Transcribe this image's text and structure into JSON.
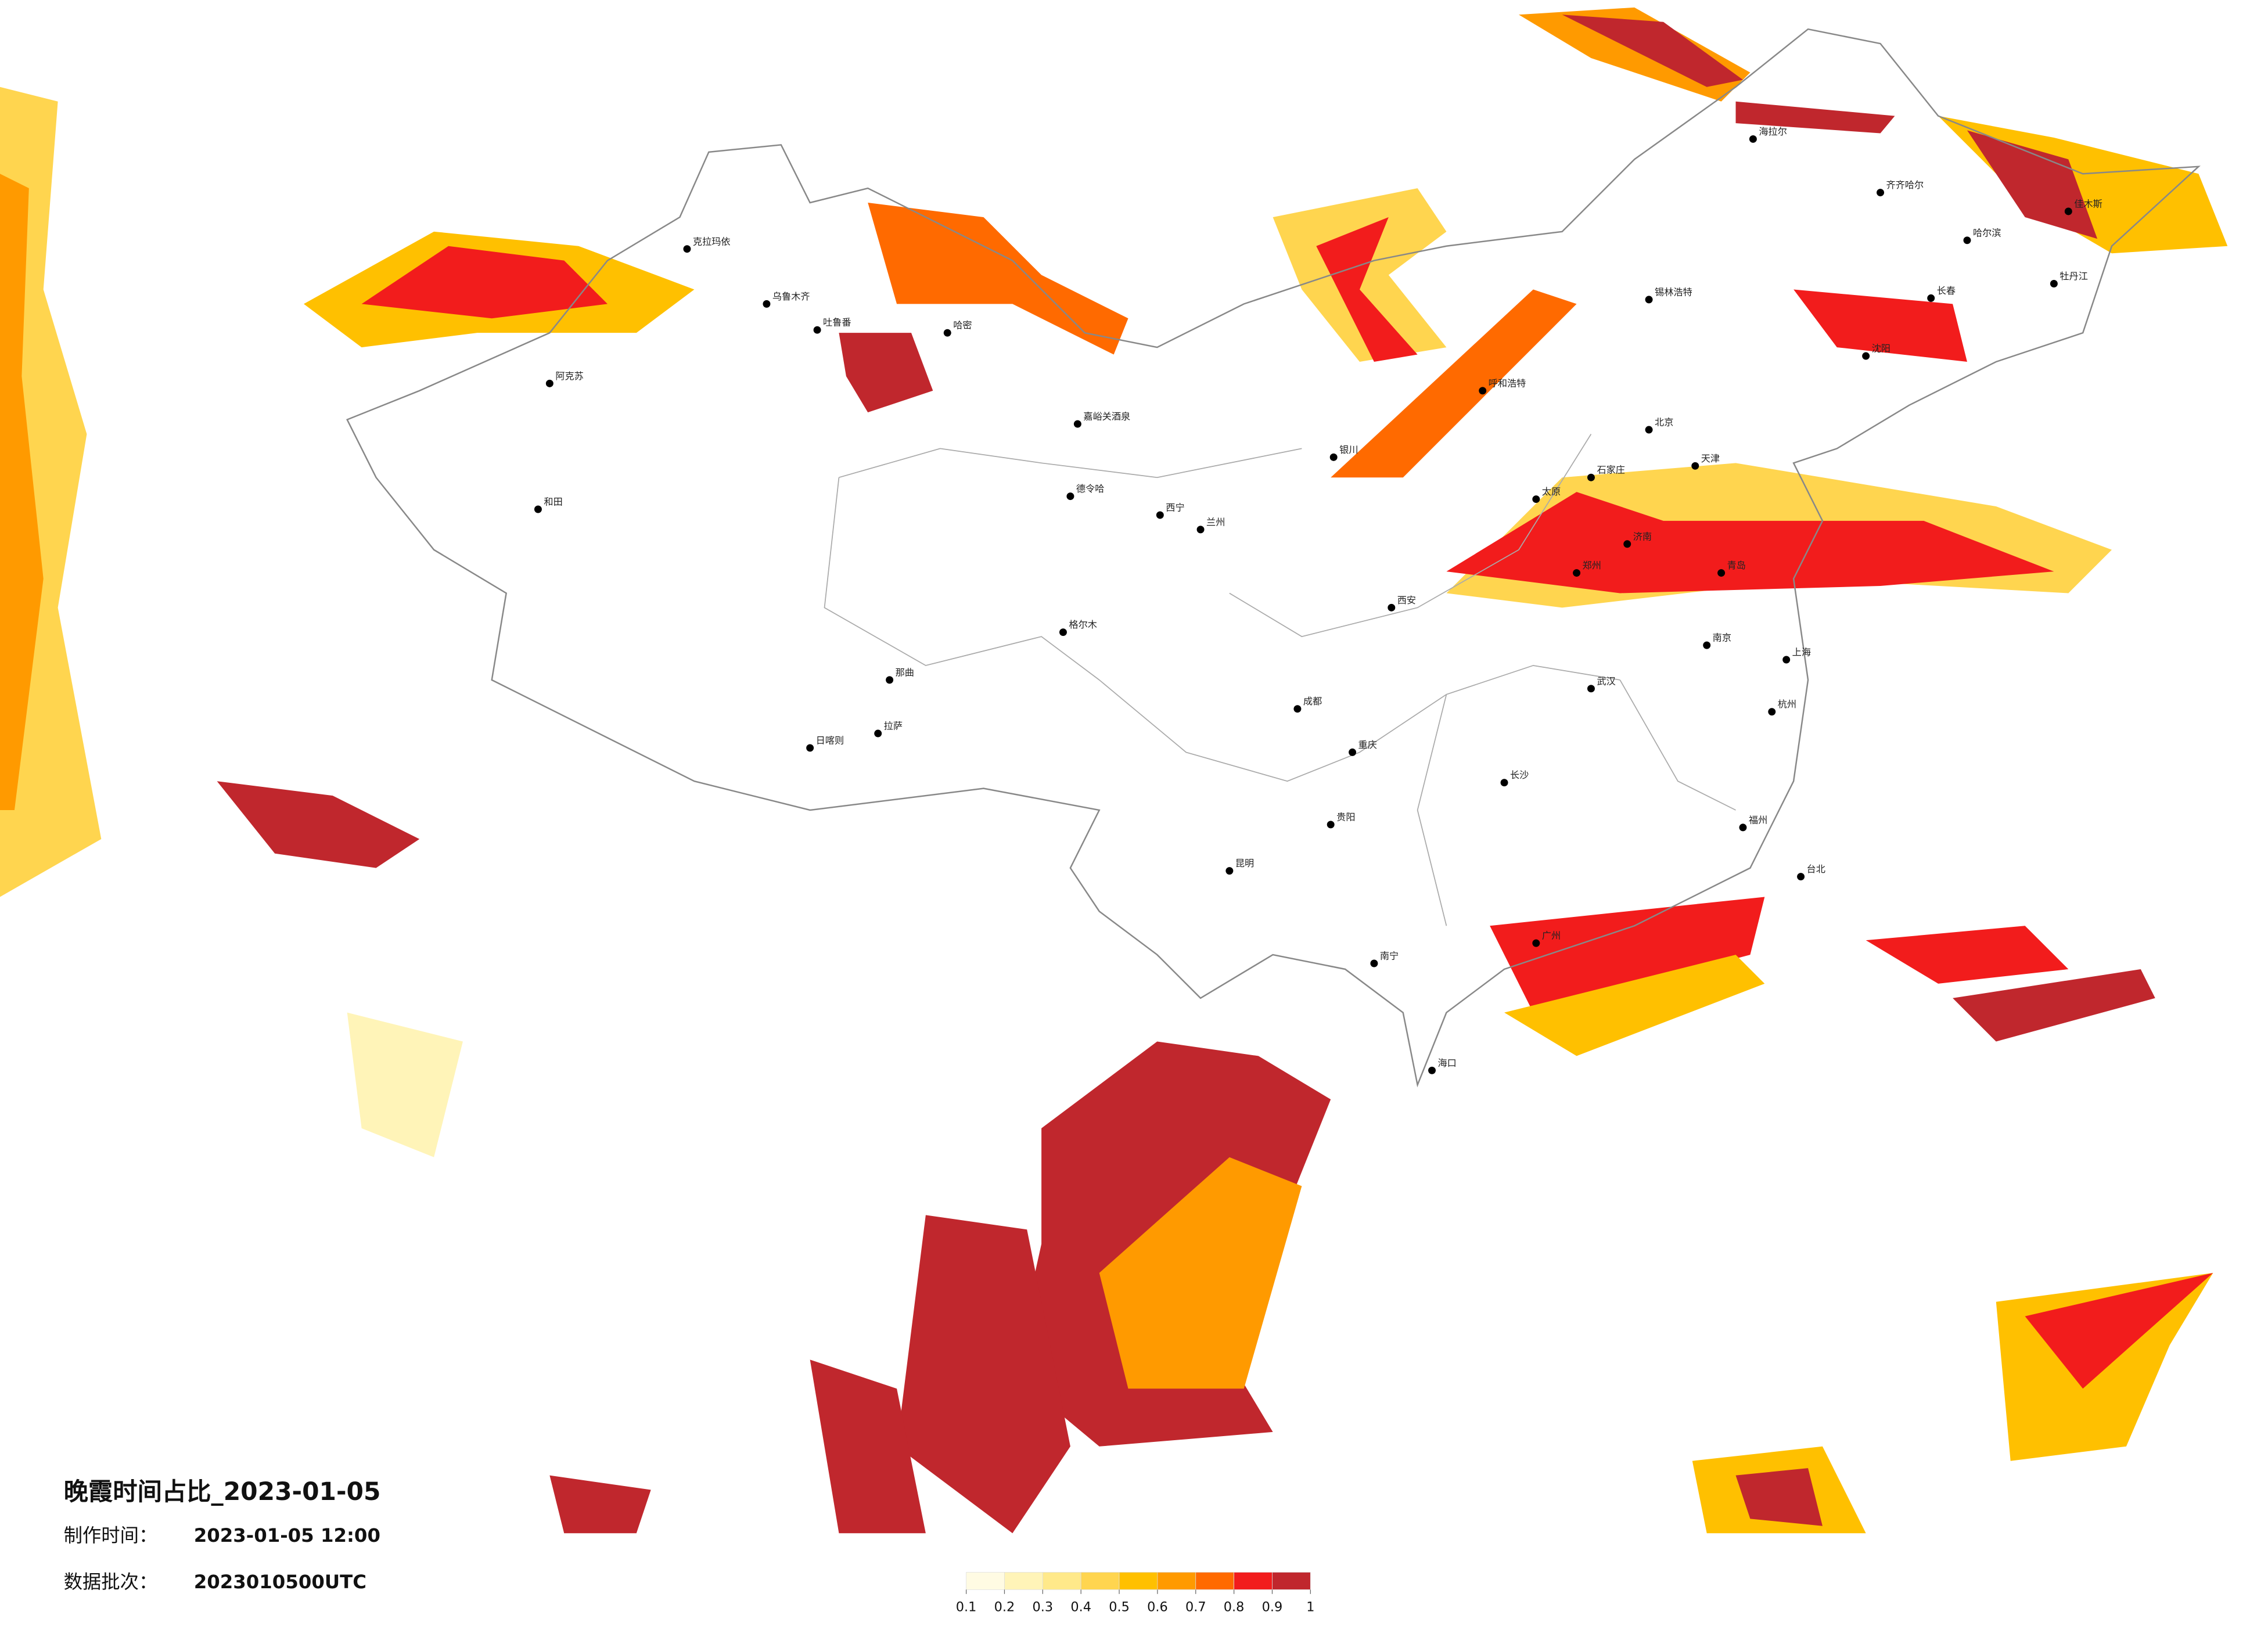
{
  "title": "晚霞时间占比_2023-01-05",
  "made_time": {
    "label": "制作时间：",
    "value": "2023-01-05 12:00"
  },
  "batch": {
    "label": "数据批次：",
    "value": "2023010500UTC"
  },
  "legend": {
    "colors": [
      "#fffbe3",
      "#fff4b8",
      "#ffe98a",
      "#ffd54f",
      "#ffc000",
      "#ff9a00",
      "#ff6a00",
      "#f21c1c",
      "#c0272d"
    ],
    "ticks": [
      0.1,
      0.2,
      0.3,
      0.4,
      0.5,
      0.6,
      0.7,
      0.8,
      0.9,
      1
    ]
  },
  "cities": [
    "克拉玛依",
    "乌鲁木齐",
    "吐鲁番",
    "阿克苏",
    "和田",
    "哈密",
    "嘉峪关酒泉",
    "德令哈",
    "格尔木",
    "日喀则",
    "拉萨",
    "那曲",
    "呼和浩特",
    "北京",
    "天津",
    "石家庄",
    "太原",
    "郑州",
    "西安",
    "兰州",
    "西宁",
    "银川",
    "成都",
    "重庆",
    "贵阳",
    "昆明",
    "南宁",
    "广州",
    "长沙",
    "武汉",
    "南京",
    "上海",
    "杭州",
    "福州",
    "台北",
    "海口",
    "哈尔滨",
    "长春",
    "沈阳",
    "济南",
    "青岛",
    "海拉尔",
    "齐齐哈尔",
    "佳木斯",
    "牡丹江",
    "锡林浩特"
  ]
}
